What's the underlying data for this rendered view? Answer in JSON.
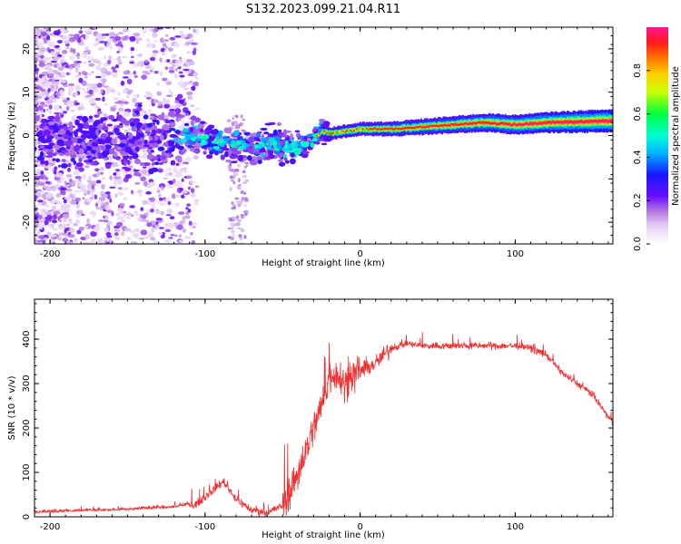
{
  "title": "S132.2023.099.21.04.R11",
  "chart_data": [
    {
      "type": "heatmap",
      "title": "S132.2023.099.21.04.R11",
      "xlabel": "Height of straight line (km)",
      "ylabel": "Frequency (Hz)",
      "xlim": [
        -210,
        163
      ],
      "ylim": [
        -25,
        25
      ],
      "xticks": [
        -200,
        -100,
        0,
        100
      ],
      "yticks": [
        -20,
        -10,
        0,
        10,
        20
      ],
      "ytick_labels": [
        "-20",
        "-10",
        "0",
        "10",
        "20"
      ],
      "ridge": {
        "x": [
          -200,
          -160,
          -130,
          -110,
          -90,
          -70,
          -55,
          -45,
          -35,
          -25,
          -20,
          -10,
          0,
          20,
          40,
          60,
          80,
          100,
          120,
          140,
          163
        ],
        "freq": [
          -1,
          -1,
          -1,
          0,
          -1.5,
          -2.5,
          -2,
          -3,
          -2,
          1,
          0.5,
          1,
          1.5,
          1.5,
          2,
          2.5,
          3,
          2.5,
          3,
          3.2,
          3.4
        ]
      },
      "colorbar": {
        "label": "Normalized spectral amplitude",
        "range": [
          0,
          1
        ],
        "ticks": [
          0.0,
          0.2,
          0.4,
          0.6,
          0.8
        ],
        "tick_labels": [
          "0.0",
          "0.2",
          "0.4",
          "0.6",
          "0.8"
        ]
      }
    },
    {
      "type": "line",
      "xlabel": "Height of straight line (km)",
      "ylabel": "SNR (10 * v/v)",
      "xlim": [
        -210,
        163
      ],
      "ylim": [
        0,
        490
      ],
      "xticks": [
        -200,
        -100,
        0,
        100
      ],
      "yticks": [
        0,
        100,
        200,
        300,
        400
      ],
      "ytick_labels": [
        "0",
        "100",
        "200",
        "300",
        "400"
      ],
      "series": [
        {
          "name": "SNR",
          "color": "#f03030",
          "x": [
            -210,
            -180,
            -150,
            -120,
            -105,
            -95,
            -88,
            -80,
            -70,
            -60,
            -50,
            -45,
            -40,
            -35,
            -30,
            -25,
            -20,
            -15,
            -10,
            -5,
            0,
            10,
            20,
            30,
            40,
            60,
            80,
            100,
            110,
            120,
            130,
            140,
            150,
            163
          ],
          "y": [
            8,
            12,
            15,
            20,
            30,
            60,
            80,
            40,
            15,
            10,
            25,
            60,
            100,
            150,
            200,
            250,
            310,
            330,
            300,
            320,
            330,
            345,
            380,
            390,
            385,
            385,
            385,
            385,
            380,
            365,
            325,
            300,
            275,
            210
          ]
        }
      ]
    }
  ]
}
